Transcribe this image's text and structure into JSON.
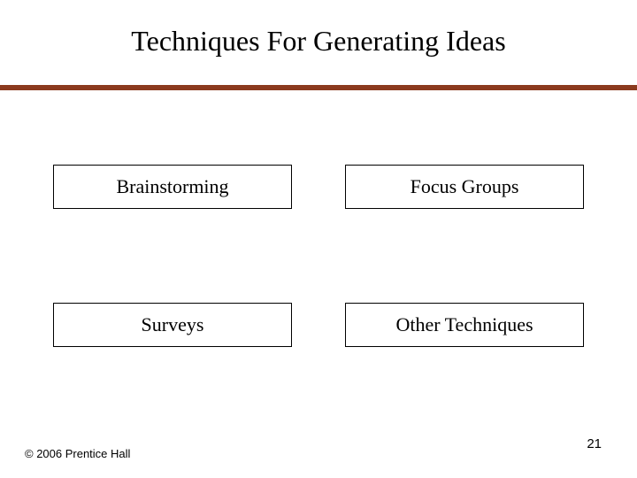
{
  "title": "Techniques For Generating Ideas",
  "divider_color": "#8b3a1e",
  "boxes": {
    "top_left": "Brainstorming",
    "top_right": "Focus Groups",
    "bottom_left": "Surveys",
    "bottom_right": "Other Techniques",
    "border_color": "#000000",
    "background_color": "#ffffff",
    "font_size_pt": 16
  },
  "copyright": "© 2006 Prentice Hall",
  "page_number": "21",
  "layout": {
    "type": "infographic",
    "slide_width": 720,
    "slide_height": 540,
    "title_fontsize": 32,
    "box_grid": {
      "rows": 2,
      "cols": 2,
      "col_gap": 60,
      "row_gap": 106
    },
    "background_color": "#ffffff"
  }
}
